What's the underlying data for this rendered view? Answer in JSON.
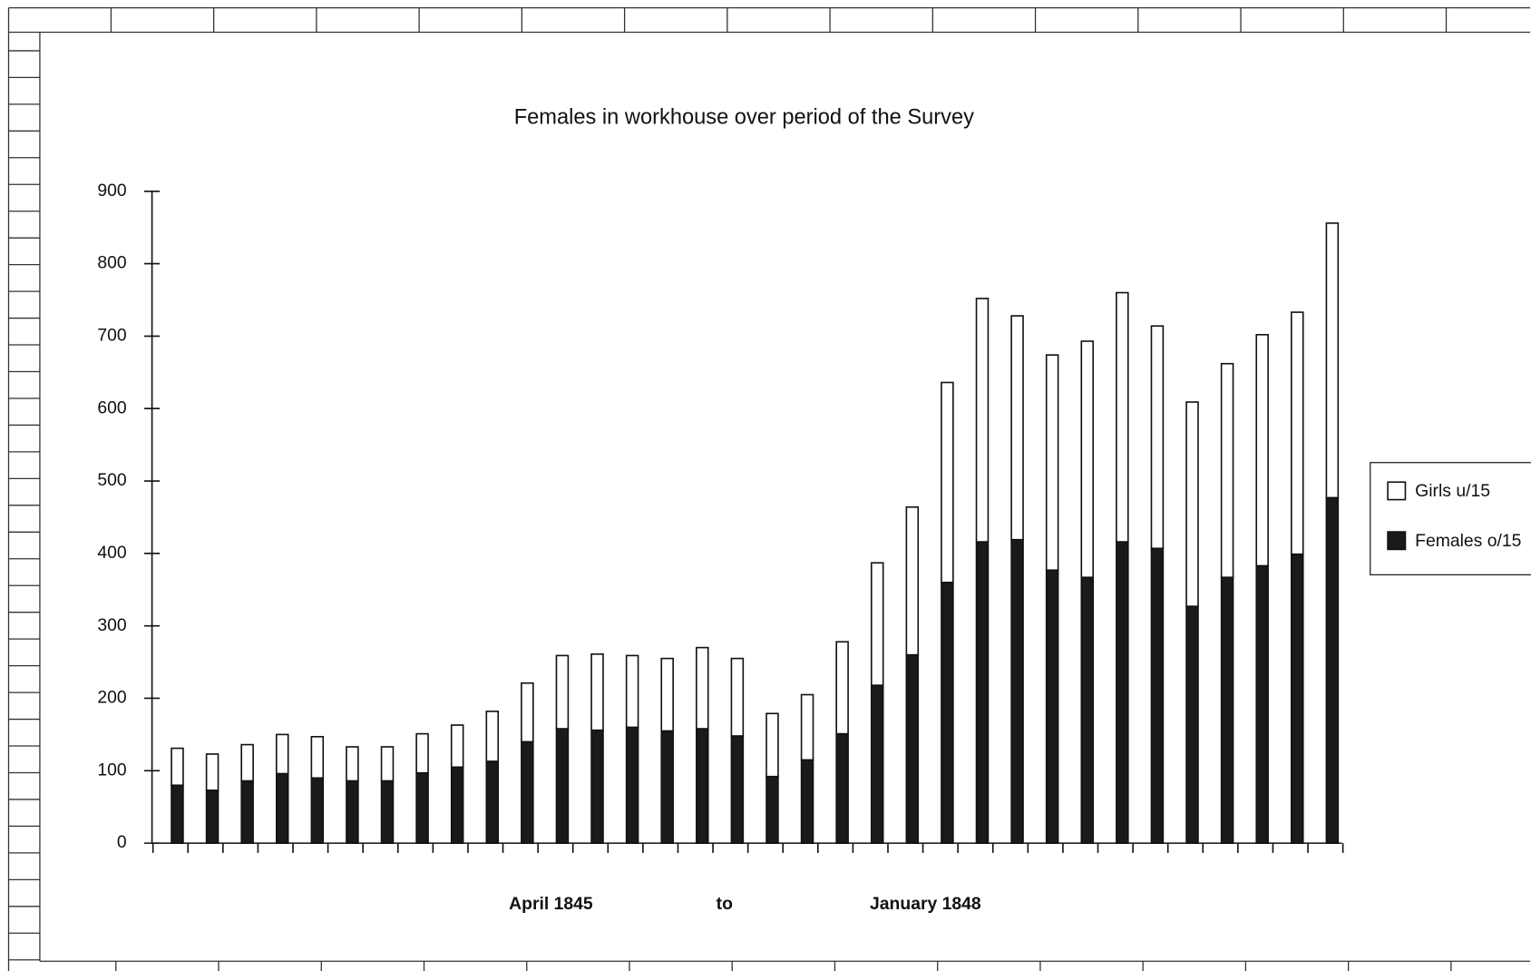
{
  "chart_data": {
    "type": "stacked-bar",
    "title": "Females in workhouse over period of the Survey",
    "annotations": [
      "April 1845",
      "to",
      "January 1848"
    ],
    "categories": [
      null,
      null,
      null,
      null,
      null,
      null,
      null,
      null,
      null,
      null,
      null,
      null,
      null,
      null,
      null,
      null,
      null,
      null,
      null,
      null,
      null,
      null,
      null,
      null,
      null,
      null,
      null,
      null,
      null,
      null,
      null,
      null,
      null,
      null
    ],
    "series": [
      {
        "name": "Girls u/15",
        "color": "#ffffff",
        "values": [
          51,
          50,
          50,
          54,
          57,
          47,
          47,
          54,
          58,
          69,
          81,
          101,
          105,
          99,
          100,
          112,
          107,
          87,
          90,
          127,
          169,
          204,
          276,
          336,
          309,
          297,
          326,
          344,
          307,
          282,
          295,
          319,
          334,
          379
        ]
      },
      {
        "name": "Females o/15",
        "color": "#1a1a1a",
        "values": [
          80,
          73,
          86,
          96,
          90,
          86,
          86,
          97,
          105,
          113,
          140,
          158,
          156,
          160,
          155,
          158,
          148,
          92,
          115,
          151,
          218,
          260,
          360,
          416,
          419,
          377,
          367,
          416,
          407,
          327,
          367,
          383,
          399,
          477
        ]
      }
    ],
    "ylim": [
      0,
      900
    ],
    "yticks": [
      0,
      100,
      200,
      300,
      400,
      500,
      600,
      700,
      800,
      900
    ],
    "legend": "right"
  }
}
